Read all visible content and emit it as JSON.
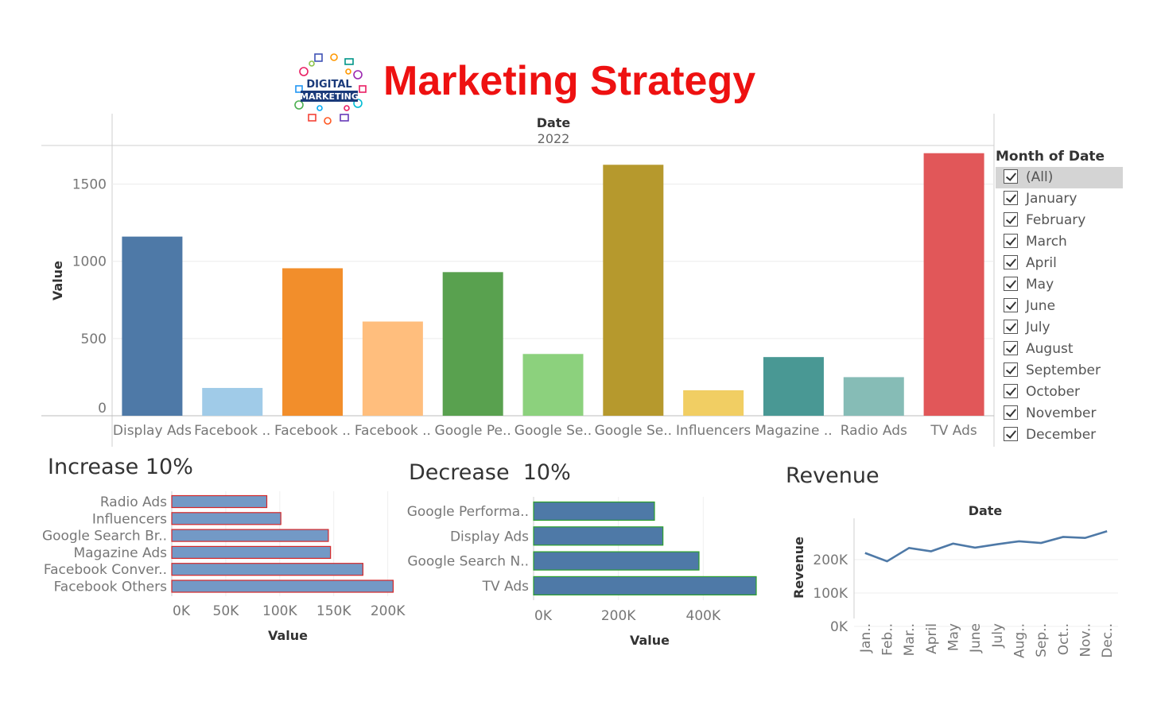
{
  "title": "Marketing Strategy",
  "logo": {
    "line1": "DIGITAL",
    "line2": "MARKETING"
  },
  "filter": {
    "title": "Month of Date",
    "items": [
      {
        "label": "(All)",
        "checked": true,
        "selected": true
      },
      {
        "label": "January",
        "checked": true
      },
      {
        "label": "February",
        "checked": true
      },
      {
        "label": "March",
        "checked": true
      },
      {
        "label": "April",
        "checked": true
      },
      {
        "label": "May",
        "checked": true
      },
      {
        "label": "June",
        "checked": true
      },
      {
        "label": "July",
        "checked": true
      },
      {
        "label": "August",
        "checked": true
      },
      {
        "label": "September",
        "checked": true
      },
      {
        "label": "October",
        "checked": true
      },
      {
        "label": "November",
        "checked": true
      },
      {
        "label": "December",
        "checked": true
      }
    ]
  },
  "panels": {
    "increase_title": "Increase 10%",
    "decrease_title": "Decrease  10%",
    "revenue_title": "Revenue"
  },
  "chart_data": [
    {
      "type": "bar",
      "header": "Date",
      "subheader": "2022",
      "ylabel": "Value",
      "ylim": [
        0,
        1750
      ],
      "yticks": [
        0,
        500,
        1000,
        1500
      ],
      "categories": [
        "Display Ads",
        "Facebook ..",
        "Facebook ..",
        "Facebook ..",
        "Google Pe..",
        "Google Se..",
        "Google Se..",
        "Influencers",
        "Magazine ..",
        "Radio Ads",
        "TV Ads"
      ],
      "values": [
        1160,
        180,
        955,
        610,
        930,
        400,
        1625,
        165,
        380,
        250,
        1700
      ],
      "colors": [
        "#4e79a7",
        "#a0cbe8",
        "#f28e2b",
        "#ffbe7d",
        "#59a14f",
        "#8cd17d",
        "#b6992d",
        "#f1ce63",
        "#499894",
        "#86bcb6",
        "#e15759"
      ],
      "grid": true
    },
    {
      "type": "bar",
      "orientation": "horizontal",
      "xlabel": "Value",
      "categories": [
        "Radio Ads",
        "Influencers",
        "Google Search Br..",
        "Magazine Ads",
        "Facebook Conver..",
        "Facebook Others"
      ],
      "values": [
        88000,
        101000,
        145000,
        147000,
        177000,
        205000
      ],
      "xlim": [
        0,
        215000
      ],
      "xticks": [
        0,
        50000,
        100000,
        150000,
        200000
      ],
      "xtick_labels": [
        "0K",
        "50K",
        "100K",
        "150K",
        "200K"
      ],
      "color": "#7399c6",
      "border_color": "#d62728"
    },
    {
      "type": "bar",
      "orientation": "horizontal",
      "xlabel": "Value",
      "categories": [
        "Google Performa..",
        "Display Ads",
        "Google Search N..",
        "TV Ads"
      ],
      "values": [
        285000,
        305000,
        390000,
        525000
      ],
      "xlim": [
        0,
        525000
      ],
      "xticks": [
        0,
        200000,
        400000
      ],
      "xtick_labels": [
        "0K",
        "200K",
        "400K"
      ],
      "color": "#4e79a7",
      "border_color": "#2ca02c"
    },
    {
      "type": "line",
      "header": "Date",
      "ylabel": "Revenue",
      "x": [
        "Jan..",
        "Feb..",
        "Mar..",
        "April",
        "May",
        "June",
        "July",
        "Aug..",
        "Sep..",
        "Oct..",
        "Nov..",
        "Dec.."
      ],
      "values": [
        220000,
        195000,
        235000,
        225000,
        248000,
        236000,
        246000,
        255000,
        250000,
        268000,
        265000,
        285000
      ],
      "ylim": [
        0,
        300000
      ],
      "yticks": [
        0,
        100000,
        200000
      ],
      "ytick_labels": [
        "0K",
        "100K",
        "200K"
      ],
      "color": "#4e79a7"
    }
  ]
}
